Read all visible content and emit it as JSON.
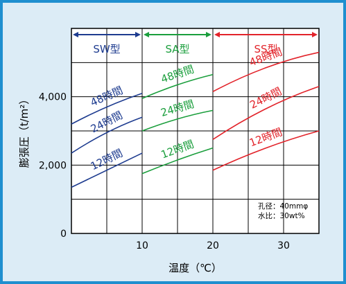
{
  "chart_data": {
    "type": "line",
    "xlabel": "温度（℃）",
    "ylabel": "膨張圧（t/m²）",
    "xlim": [
      0,
      35
    ],
    "ylim": [
      0,
      6000
    ],
    "x_ticks": [
      10,
      20,
      30
    ],
    "y_ticks": [
      {
        "value": 0,
        "label": "0"
      },
      {
        "value": 2000,
        "label": "2,000"
      },
      {
        "value": 4000,
        "label": "4,000"
      }
    ],
    "grid": true,
    "ranges": [
      {
        "name": "SW型",
        "x": [
          0,
          10
        ],
        "color": "#1d3b8f"
      },
      {
        "name": "SA型",
        "x": [
          10,
          20
        ],
        "color": "#1a9e3c"
      },
      {
        "name": "SS型",
        "x": [
          20,
          35
        ],
        "color": "#e2232a"
      }
    ],
    "series": [
      {
        "name": "12時間",
        "group": 0,
        "color": "#1d3b8f",
        "x": [
          0,
          5,
          10
        ],
        "y": [
          1350,
          1850,
          2350
        ],
        "label_at": 5,
        "label_offset": 300
      },
      {
        "name": "24時間",
        "group": 0,
        "color": "#1d3b8f",
        "x": [
          0,
          5,
          10
        ],
        "y": [
          2350,
          2950,
          3400
        ],
        "label_at": 5,
        "label_offset": 300
      },
      {
        "name": "48時間",
        "group": 0,
        "color": "#1d3b8f",
        "x": [
          0,
          5,
          10
        ],
        "y": [
          3200,
          3700,
          4100
        ],
        "label_at": 5,
        "label_offset": 300
      },
      {
        "name": "12時間",
        "group": 1,
        "color": "#1a9e3c",
        "x": [
          10,
          15,
          20
        ],
        "y": [
          1750,
          2150,
          2500
        ],
        "label_at": 15,
        "label_offset": 300
      },
      {
        "name": "24時間",
        "group": 1,
        "color": "#1a9e3c",
        "x": [
          10,
          15,
          20
        ],
        "y": [
          3000,
          3350,
          3600
        ],
        "label_at": 15,
        "label_offset": 300
      },
      {
        "name": "48時間",
        "group": 1,
        "color": "#1a9e3c",
        "x": [
          10,
          15,
          20
        ],
        "y": [
          3950,
          4350,
          4650
        ],
        "label_at": 15,
        "label_offset": 300
      },
      {
        "name": "12時間",
        "group": 2,
        "color": "#e2232a",
        "x": [
          20,
          27.5,
          35
        ],
        "y": [
          1850,
          2500,
          3000
        ],
        "label_at": 27.5,
        "label_offset": 300
      },
      {
        "name": "24時間",
        "group": 2,
        "color": "#e2232a",
        "x": [
          20,
          27.5,
          35
        ],
        "y": [
          2750,
          3650,
          4300
        ],
        "label_at": 27.5,
        "label_offset": 300
      },
      {
        "name": "48時間",
        "group": 2,
        "color": "#e2232a",
        "x": [
          20,
          27.5,
          35
        ],
        "y": [
          4150,
          4850,
          5300
        ],
        "label_at": 27.5,
        "label_offset": 300
      }
    ],
    "annotations": [
      "孔径：40mmφ",
      "水比：30wt%"
    ]
  },
  "colors": {
    "background": "#dcecf6",
    "frame": "#1f8fcf",
    "axis": "#000000"
  }
}
